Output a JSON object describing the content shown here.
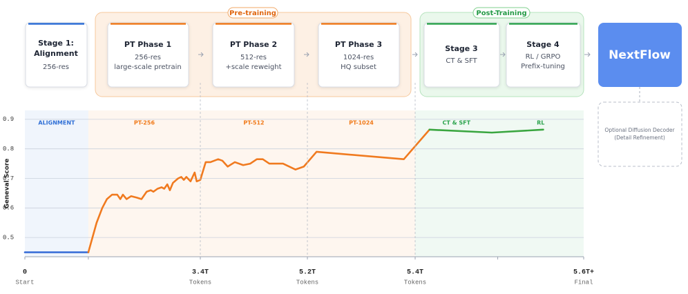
{
  "pipeline": {
    "groups": [
      {
        "label": "Pre-training"
      },
      {
        "label": "Post-Training"
      }
    ],
    "stages": [
      {
        "title_lines": [
          "Stage 1:",
          "Alignment"
        ],
        "detail_lines": [
          "256-res"
        ]
      },
      {
        "title_lines": [
          "PT Phase 1"
        ],
        "detail_lines": [
          "256-res",
          "large-scale pretrain"
        ]
      },
      {
        "title_lines": [
          "PT Phase 2"
        ],
        "detail_lines": [
          "512-res",
          "+scale reweight"
        ]
      },
      {
        "title_lines": [
          "PT Phase 3"
        ],
        "detail_lines": [
          "1024-res",
          "HQ subset"
        ]
      },
      {
        "title_lines": [
          "Stage 3"
        ],
        "detail_lines": [
          "CT & SFT"
        ]
      },
      {
        "title_lines": [
          "Stage 4"
        ],
        "detail_lines": [
          "RL / GRPO",
          "Prefix-tuning"
        ]
      }
    ],
    "output": "NextFlow",
    "optional_lines": [
      "Optional Diffusion Decoder",
      "(Detail Refinement)"
    ]
  },
  "chart_data": {
    "type": "line",
    "y_label": "Geneval Score",
    "xlim": [
      0,
      5.6
    ],
    "xticks": [
      0,
      {
        "value": 3.4,
        "label": "3.4T"
      },
      {
        "value": 5.2,
        "label": "5.2T"
      },
      {
        "value": 5.4,
        "label": "5.4T"
      },
      {
        "value": 5.6,
        "label": "5.6T+"
      }
    ],
    "xtick_sublabels": [
      "Start",
      "Tokens",
      "Tokens",
      "Tokens",
      "Final"
    ],
    "ylim": [
      0.435,
      0.93
    ],
    "yticks": [
      0.5,
      0.6,
      0.7,
      0.8,
      0.9
    ],
    "grid": true,
    "regions": [
      {
        "label": "ALIGNMENT",
        "start": 0,
        "end": 1.23,
        "color": "#2f6fd6"
      },
      {
        "label": "PT-256",
        "start": 1.23,
        "end": 3.4,
        "color": "#f07a1a"
      },
      {
        "label": "PT-512",
        "start": 3.4,
        "end": 5.2,
        "color": "#f07a1a"
      },
      {
        "label": "PT-1024",
        "start": 5.2,
        "end": 5.4,
        "color": "#f07a1a"
      },
      {
        "label": "CT & SFT",
        "start": 5.4,
        "end": 5.498,
        "color": "#2da44e"
      },
      {
        "label": "RL",
        "start": 5.498,
        "end": 5.6,
        "color": "#2da44e"
      }
    ],
    "series": [
      {
        "color": "#3b6fd8",
        "x": [
          0,
          1.23
        ],
        "values": [
          0.45,
          0.45
        ]
      },
      {
        "color": "#f07a1f",
        "x": [
          1.23,
          1.39,
          1.5,
          1.59,
          1.69,
          1.79,
          1.85,
          1.9,
          1.97,
          2.06,
          2.17,
          2.26,
          2.36,
          2.44,
          2.49,
          2.57,
          2.65,
          2.7,
          2.76,
          2.81,
          2.87,
          2.97,
          3.03,
          3.08,
          3.13,
          3.21,
          3.29,
          3.33,
          3.4,
          3.49,
          3.57,
          3.7,
          3.77,
          3.86,
          3.98,
          4.12,
          4.24,
          4.35,
          4.45,
          4.56,
          4.79,
          5.0,
          5.14,
          5.217,
          5.379,
          5.417
        ],
        "values": [
          0.45,
          0.55,
          0.6,
          0.63,
          0.645,
          0.645,
          0.63,
          0.645,
          0.63,
          0.64,
          0.635,
          0.63,
          0.655,
          0.66,
          0.655,
          0.665,
          0.67,
          0.665,
          0.68,
          0.66,
          0.685,
          0.7,
          0.705,
          0.695,
          0.705,
          0.69,
          0.72,
          0.69,
          0.695,
          0.755,
          0.755,
          0.765,
          0.76,
          0.74,
          0.755,
          0.745,
          0.75,
          0.765,
          0.765,
          0.75,
          0.75,
          0.73,
          0.74,
          0.79,
          0.765,
          0.865
        ]
      },
      {
        "color": "#3aa640",
        "x": [
          5.417,
          5.491,
          5.552
        ],
        "values": [
          0.865,
          0.855,
          0.865
        ]
      }
    ]
  }
}
